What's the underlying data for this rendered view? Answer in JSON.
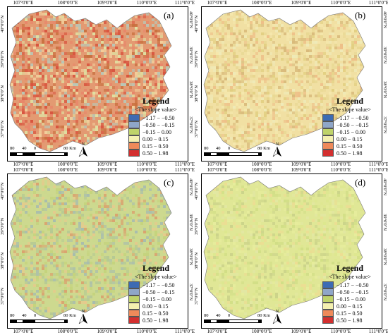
{
  "panels": [
    {
      "label": "(a)",
      "palette": [
        "#d8543e",
        "#e8866a",
        "#f2cf9c",
        "#dfe2a3",
        "#b8c8b8",
        "#c8703e"
      ],
      "base": "#e39a72"
    },
    {
      "label": "(b)",
      "palette": [
        "#f5e7ac",
        "#e9d894",
        "#eebf88",
        "#efeab8",
        "#e2cf82",
        "#d8b97a"
      ],
      "base": "#f1e0a3"
    },
    {
      "label": "(c)",
      "palette": [
        "#cbd88e",
        "#b5c993",
        "#a7bcae",
        "#e7c98c",
        "#d9a36f",
        "#c4d37c"
      ],
      "base": "#cdd98f"
    },
    {
      "label": "(d)",
      "palette": [
        "#dde78f",
        "#e6ec9c",
        "#d1de86",
        "#ecdd93",
        "#cbd38a",
        "#e2e7a3"
      ],
      "base": "#e0e796"
    }
  ],
  "axes": {
    "top_ticks": [
      "107°0'0\"E",
      "108°0'0\"E",
      "109°0'0\"E",
      "110°0'0\"E",
      "111°0'0\"E"
    ],
    "side_ticks": [
      "40°0'0\"N",
      "39°0'0\"N",
      "38°0'0\"N",
      "37°0'0\"N"
    ]
  },
  "legend": {
    "title": "Legend",
    "subtitle": "<The slope value>",
    "items": [
      {
        "label": "−1.17 − −0.50",
        "color": "#3d6bb3"
      },
      {
        "label": "−0.50 − −0.15",
        "color": "#8fa6c8"
      },
      {
        "label": "−0.15 − 0.00",
        "color": "#bfd36a"
      },
      {
        "label": "0.00 − 0.15",
        "color": "#f4f0b0"
      },
      {
        "label": "0.15 − 0.50",
        "color": "#ef8a5a"
      },
      {
        "label": "0.50 − 1.98",
        "color": "#d32f2f"
      }
    ]
  },
  "scale": {
    "labels": [
      "80",
      "40",
      "0",
      "80 Km"
    ],
    "north": "N"
  }
}
